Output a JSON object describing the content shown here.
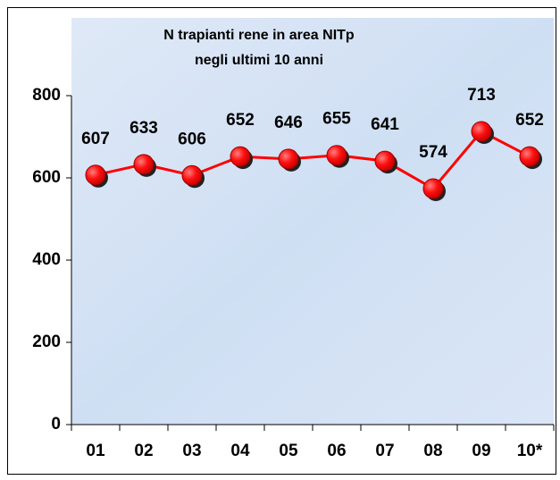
{
  "chart_data": {
    "type": "line",
    "title": "N trapianti rene in area NITp",
    "subtitle": "negli ultimi 10 anni",
    "categories": [
      "01",
      "02",
      "03",
      "04",
      "05",
      "06",
      "07",
      "08",
      "09",
      "10*"
    ],
    "series": [
      {
        "name": "N trapianti rene",
        "color": "#ff0000",
        "values": [
          607,
          633,
          606,
          652,
          646,
          655,
          641,
          574,
          713,
          652
        ]
      }
    ],
    "ylim": [
      0,
      800
    ],
    "yticks": [
      0,
      200,
      400,
      600,
      800
    ]
  }
}
